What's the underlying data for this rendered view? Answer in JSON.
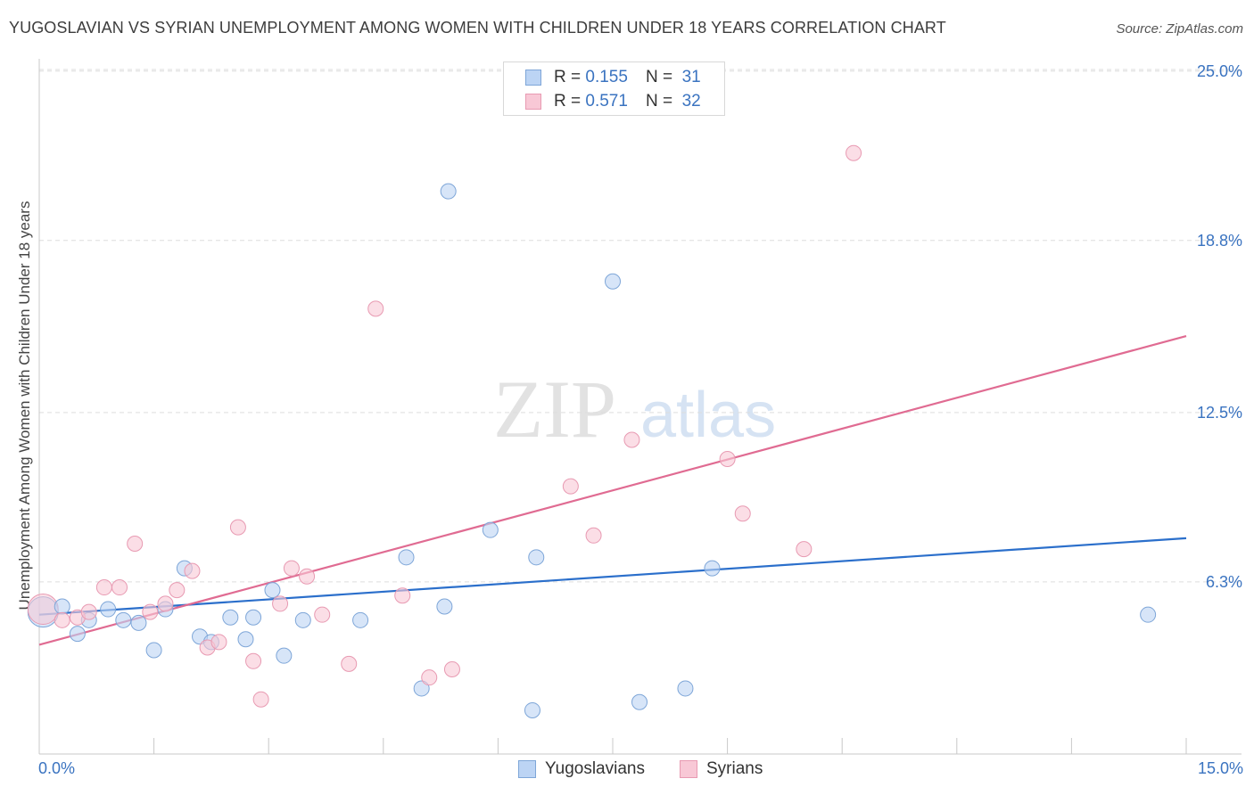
{
  "header": {
    "title": "YUGOSLAVIAN VS SYRIAN UNEMPLOYMENT AMONG WOMEN WITH CHILDREN UNDER 18 YEARS CORRELATION CHART",
    "source": "Source: ZipAtlas.com"
  },
  "legend": {
    "rows": [
      {
        "r_label": "R =",
        "r_value": "0.155",
        "n_label": "N =",
        "n_value": "31"
      },
      {
        "r_label": "R =",
        "r_value": "0.571",
        "n_label": "N =",
        "n_value": "32"
      }
    ]
  },
  "bottom_legend": {
    "items": [
      {
        "label": "Yugoslavians"
      },
      {
        "label": "Syrians"
      }
    ]
  },
  "watermark": {
    "zip": "ZIP",
    "atlas": "atlas"
  },
  "colors": {
    "blue_fill": "#bcd4f4",
    "blue_stroke": "#7ea6d8",
    "blue_line": "#2b6fcb",
    "pink_fill": "#f8c8d6",
    "pink_stroke": "#e89ab2",
    "pink_line": "#e06b92",
    "axis_label": "#3a73c0",
    "grid": "#dddddd"
  },
  "chart_data": {
    "type": "scatter",
    "title": "YUGOSLAVIAN VS SYRIAN UNEMPLOYMENT AMONG WOMEN WITH CHILDREN UNDER 18 YEARS CORRELATION CHART",
    "xlabel": "",
    "ylabel": "Unemployment Among Women with Children Under 18 years",
    "xlim": [
      0,
      15
    ],
    "ylim": [
      0,
      26
    ],
    "x_tick_labels": [
      {
        "value": 0,
        "label": "0.0%"
      },
      {
        "value": 15,
        "label": "15.0%"
      }
    ],
    "y_tick_labels": [
      {
        "value": 6.3,
        "label": "6.3%"
      },
      {
        "value": 12.5,
        "label": "12.5%"
      },
      {
        "value": 18.8,
        "label": "18.8%"
      },
      {
        "value": 25.0,
        "label": "25.0%"
      }
    ],
    "series": [
      {
        "name": "Yugoslavians",
        "r": 0.155,
        "n": 31,
        "points": [
          [
            0.05,
            5.2
          ],
          [
            0.3,
            5.4
          ],
          [
            0.5,
            4.4
          ],
          [
            0.65,
            4.9
          ],
          [
            0.9,
            5.3
          ],
          [
            1.1,
            4.9
          ],
          [
            1.3,
            4.8
          ],
          [
            1.5,
            3.8
          ],
          [
            1.65,
            5.3
          ],
          [
            1.9,
            6.8
          ],
          [
            2.1,
            4.3
          ],
          [
            2.25,
            4.1
          ],
          [
            2.5,
            5.0
          ],
          [
            2.7,
            4.2
          ],
          [
            2.8,
            5.0
          ],
          [
            3.05,
            6.0
          ],
          [
            3.2,
            3.6
          ],
          [
            3.45,
            4.9
          ],
          [
            4.2,
            4.9
          ],
          [
            4.8,
            7.2
          ],
          [
            5.0,
            2.4
          ],
          [
            5.3,
            5.4
          ],
          [
            5.35,
            20.6
          ],
          [
            5.9,
            8.2
          ],
          [
            6.45,
            1.6
          ],
          [
            6.5,
            7.2
          ],
          [
            7.5,
            17.3
          ],
          [
            7.85,
            1.9
          ],
          [
            8.45,
            2.4
          ],
          [
            8.8,
            6.8
          ],
          [
            14.5,
            5.1
          ]
        ],
        "trend": {
          "x0": 0,
          "y0": 5.1,
          "x1": 15,
          "y1": 7.9
        }
      },
      {
        "name": "Syrians",
        "r": 0.571,
        "n": 32,
        "points": [
          [
            0.05,
            5.3
          ],
          [
            0.3,
            4.9
          ],
          [
            0.5,
            5.0
          ],
          [
            0.65,
            5.2
          ],
          [
            0.85,
            6.1
          ],
          [
            1.05,
            6.1
          ],
          [
            1.25,
            7.7
          ],
          [
            1.45,
            5.2
          ],
          [
            1.65,
            5.5
          ],
          [
            1.8,
            6.0
          ],
          [
            2.0,
            6.7
          ],
          [
            2.2,
            3.9
          ],
          [
            2.35,
            4.1
          ],
          [
            2.6,
            8.3
          ],
          [
            2.8,
            3.4
          ],
          [
            2.9,
            2.0
          ],
          [
            3.15,
            5.5
          ],
          [
            3.3,
            6.8
          ],
          [
            3.5,
            6.5
          ],
          [
            3.7,
            5.1
          ],
          [
            4.05,
            3.3
          ],
          [
            4.4,
            16.3
          ],
          [
            4.75,
            5.8
          ],
          [
            5.1,
            2.8
          ],
          [
            5.4,
            3.1
          ],
          [
            6.95,
            9.8
          ],
          [
            7.25,
            8.0
          ],
          [
            7.75,
            11.5
          ],
          [
            9.0,
            10.8
          ],
          [
            9.2,
            8.8
          ],
          [
            10.0,
            7.5
          ],
          [
            10.65,
            22.0
          ]
        ],
        "trend": {
          "x0": 0,
          "y0": 4.0,
          "x1": 15,
          "y1": 15.3
        }
      }
    ],
    "legend_position": "top-center"
  }
}
